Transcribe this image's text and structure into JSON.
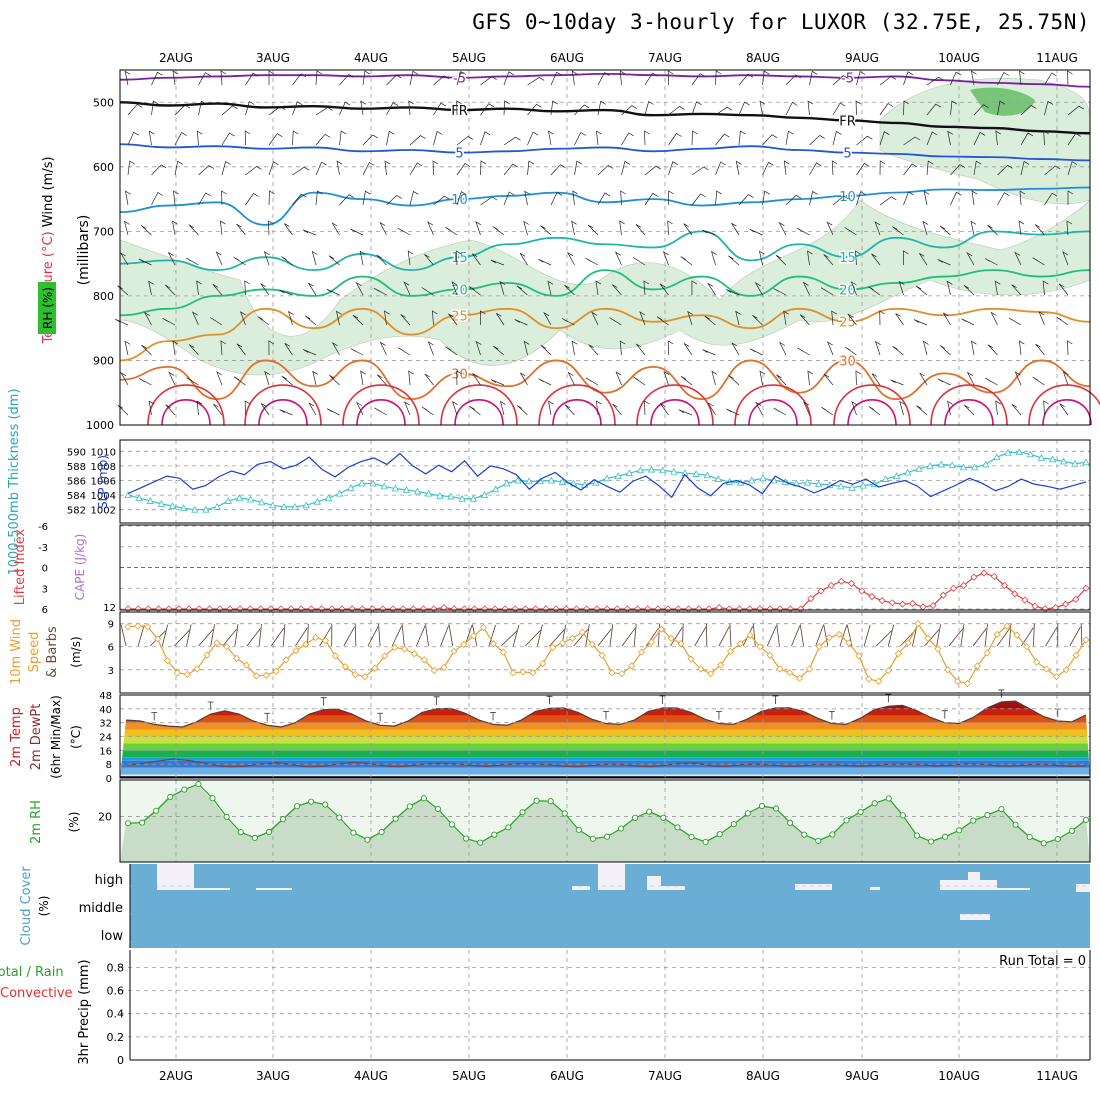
{
  "title": "GFS 0~10day 3-hourly for LUXOR (32.75E, 25.75N)",
  "colors": {
    "temp_cold": "#7a1fa2",
    "temp_blue": "#2256d6",
    "temp_lblue": "#1e90d8",
    "temp_teal": "#1fb6a8",
    "temp_green": "#1fbf7a",
    "temp_orange": "#e0902a",
    "temp_dorange": "#e0702a",
    "temp_red": "#e0303a",
    "temp_mag": "#d01070",
    "rh_fill": "#cfe8cf",
    "slp": "#1a3fd0",
    "thickness": "#3cc0c8",
    "lifted": "#e04040",
    "wind": "#e8a030",
    "rh2m": "#2aa02a",
    "cloud": "#6aaed6",
    "cloud_gap": "#f4f0f8"
  },
  "chart_data": [
    {
      "panel": "upper-air",
      "type": "contour",
      "ylabel": "(millibars)",
      "side_labels": [
        "Wind (m/s)",
        "Temperature (°C)",
        "RH (%)"
      ],
      "y_ticks": [
        500,
        600,
        700,
        800,
        900,
        1000
      ],
      "ylim": [
        1000,
        450
      ],
      "x_ticks": [
        "2AUG",
        "3AUG",
        "4AUG",
        "5AUG",
        "6AUG",
        "7AUG",
        "8AUG",
        "9AUG",
        "10AUG",
        "11AUG"
      ],
      "isotherms": [
        {
          "label": "-5",
          "levels": [
            465,
            462,
            460,
            458,
            458,
            460,
            458,
            462,
            460,
            458,
            456,
            458,
            460,
            458,
            460,
            462,
            460,
            466,
            470,
            472,
            476
          ]
        },
        {
          "label": "FR",
          "levels": [
            500,
            505,
            502,
            508,
            506,
            510,
            508,
            512,
            510,
            514,
            512,
            520,
            518,
            520,
            524,
            528,
            532,
            538,
            540,
            545,
            548
          ]
        },
        {
          "label": "5",
          "levels": [
            565,
            570,
            568,
            572,
            570,
            576,
            574,
            578,
            576,
            572,
            570,
            576,
            572,
            568,
            574,
            578,
            580,
            584,
            585,
            588,
            590
          ]
        },
        {
          "label": "10",
          "levels": [
            670,
            660,
            655,
            690,
            640,
            650,
            660,
            650,
            645,
            640,
            655,
            650,
            660,
            655,
            650,
            645,
            640,
            635,
            636,
            634,
            632
          ]
        },
        {
          "label": "15",
          "levels": [
            750,
            745,
            760,
            740,
            760,
            735,
            760,
            740,
            720,
            710,
            720,
            725,
            700,
            745,
            720,
            740,
            710,
            725,
            700,
            705,
            700
          ]
        },
        {
          "label": "20",
          "levels": [
            830,
            820,
            800,
            790,
            800,
            770,
            800,
            790,
            780,
            800,
            760,
            790,
            770,
            800,
            770,
            790,
            780,
            770,
            760,
            770,
            760
          ]
        },
        {
          "label": "25",
          "levels": [
            900,
            870,
            860,
            820,
            850,
            820,
            860,
            830,
            820,
            850,
            820,
            840,
            830,
            850,
            820,
            840,
            820,
            830,
            820,
            825,
            840
          ]
        },
        {
          "label": "30",
          "levels": [
            930,
            910,
            960,
            900,
            940,
            900,
            960,
            920,
            940,
            900,
            950,
            910,
            960,
            900,
            950,
            900,
            960,
            920,
            950,
            900,
            940
          ]
        }
      ]
    },
    {
      "panel": "slp-thickness",
      "type": "line",
      "y_labels": [
        "1000-500mb Thickness (dm)",
        "SLP (mb)"
      ],
      "left_ticks": [
        582,
        584,
        586,
        588,
        590
      ],
      "right_ticks": [
        1002,
        1004,
        1006,
        1008,
        1010
      ],
      "series": [
        {
          "name": "SLP (mb)",
          "values": [
            1004.2,
            1005.0,
            1005.8,
            1006.6,
            1006.3,
            1004.8,
            1005.3,
            1006.5,
            1007.3,
            1006.8,
            1008.2,
            1008.6,
            1007.6,
            1008.1,
            1009.2,
            1007.5,
            1006.5,
            1007.8,
            1008.6,
            1009.1,
            1008.2,
            1009.7,
            1008.0,
            1006.9,
            1008.1,
            1007.2,
            1008.7,
            1006.6,
            1008.0,
            1007.6,
            1006.8,
            1004.8,
            1006.3,
            1007.1,
            1005.7,
            1004.7,
            1006.1,
            1005.2,
            1004.4,
            1005.9,
            1006.6,
            1005.3,
            1003.7,
            1006.8,
            1005.0,
            1003.9,
            1005.6,
            1006.0,
            1005.4,
            1004.2,
            1006.6,
            1005.6,
            1005.1,
            1004.3,
            1005.0,
            1006.0,
            1005.5,
            1006.2,
            1005.1,
            1005.6,
            1006.0,
            1005.2,
            1003.8,
            1004.6,
            1005.4,
            1006.3,
            1005.6,
            1004.6,
            1005.2,
            1006.2,
            1005.5,
            1005.2,
            1004.8,
            1005.3,
            1005.8
          ]
        },
        {
          "name": "1000-500mb Thickness (dm)",
          "values": [
            584.0,
            583.6,
            583.2,
            582.8,
            582.5,
            582.2,
            582.0,
            582.0,
            582.4,
            583.2,
            583.6,
            583.4,
            583.0,
            582.6,
            582.4,
            582.4,
            582.6,
            583.1,
            583.6,
            584.2,
            585.0,
            585.6,
            585.6,
            585.2,
            584.9,
            584.7,
            584.5,
            584.2,
            583.9,
            583.8,
            583.5,
            583.5,
            584.0,
            584.8,
            585.6,
            586.0,
            585.9,
            585.9,
            586.0,
            585.8,
            585.6,
            585.4,
            585.7,
            586.3,
            586.6,
            587.0,
            587.4,
            587.5,
            587.4,
            587.2,
            587.0,
            586.9,
            586.7,
            586.2,
            585.8,
            585.7,
            586.0,
            586.3,
            586.0,
            585.8,
            585.6,
            585.7,
            585.5,
            585.4,
            585.2,
            585.0,
            585.3,
            585.5,
            586.2,
            586.6,
            587.1,
            587.6,
            588.0,
            588.2,
            588.1,
            587.8,
            587.8,
            588.2,
            589.2,
            589.8,
            589.9,
            589.6,
            589.1,
            588.9,
            588.6,
            588.3,
            588.5
          ]
        }
      ]
    },
    {
      "panel": "cape-lifted",
      "type": "line",
      "y_labels": [
        "Lifted Index",
        "CAPE (J/kg)"
      ],
      "left_ticks": [
        -6,
        -3,
        0,
        3,
        6
      ],
      "right_ticks": [
        12
      ],
      "series": [
        {
          "name": "Lifted Index",
          "values": [
            6,
            6,
            6,
            6,
            6,
            6,
            6,
            6,
            6,
            6,
            6,
            6,
            6,
            6,
            6,
            6,
            6,
            6,
            6,
            6,
            6,
            6,
            6,
            6,
            6,
            6,
            6,
            6,
            6,
            6,
            6,
            5.8,
            6,
            6,
            6,
            6,
            6,
            6,
            6,
            6,
            6,
            6,
            6,
            6,
            6,
            6,
            6,
            6,
            6,
            6,
            6,
            6,
            6,
            6,
            6,
            6,
            6,
            6,
            5.8,
            6,
            6,
            6,
            6,
            6,
            6,
            6,
            6,
            4.5,
            3.4,
            2.6,
            2.0,
            2.3,
            3.4,
            4.2,
            4.8,
            5.1,
            5.3,
            5.2,
            5.7,
            5.5,
            4.0,
            3.0,
            2.6,
            1.4,
            0.8,
            1.3,
            2.6,
            3.8,
            4.7,
            5.6,
            6.0,
            5.8,
            5.3,
            4.6,
            3.0
          ]
        }
      ]
    },
    {
      "panel": "10m-wind",
      "type": "line",
      "y_labels": [
        "10m Wind Speed & Barbs",
        "(m/s)"
      ],
      "left_ticks": [
        3,
        6,
        9
      ],
      "series": [
        {
          "name": "10m Wind Speed",
          "values": [
            8.6,
            8.7,
            8.6,
            7.0,
            4.2,
            2.6,
            2.4,
            3.1,
            4.9,
            6.5,
            6.0,
            4.5,
            3.6,
            2.2,
            2.3,
            2.8,
            4.3,
            5.5,
            6.3,
            7.2,
            6.8,
            4.8,
            3.4,
            2.4,
            2.1,
            3.2,
            4.8,
            5.9,
            5.7,
            5.1,
            4.3,
            2.9,
            3.3,
            5.4,
            6.3,
            7.4,
            8.5,
            6.4,
            5.3,
            2.6,
            2.7,
            2.6,
            3.8,
            5.9,
            6.5,
            7.1,
            7.9,
            6.3,
            4.9,
            2.6,
            2.5,
            3.5,
            5.3,
            6.6,
            8.3,
            7.1,
            6.4,
            4.4,
            3.1,
            2.5,
            3.6,
            5.4,
            6.4,
            7.5,
            6.0,
            4.9,
            3.1,
            2.6,
            1.9,
            3.1,
            6.0,
            7.2,
            7.6,
            6.5,
            4.8,
            1.8,
            1.5,
            2.9,
            5.1,
            6.5,
            9.0,
            7.1,
            5.7,
            3.0,
            1.5,
            1.2,
            3.5,
            5.2,
            7.6,
            8.7,
            7.5,
            6.0,
            4.0,
            3.1,
            2.1,
            3.0,
            4.9,
            6.9
          ]
        }
      ]
    },
    {
      "panel": "2m-temp",
      "type": "area",
      "y_labels": [
        "2m Temp",
        "2m DewPt",
        "(6hr Min/Max)",
        "(°C)"
      ],
      "left_ticks": [
        0,
        8,
        16,
        24,
        32,
        40,
        48
      ],
      "series": [
        {
          "name": "2m Temp",
          "values": [
            33.5,
            33.0,
            31.0,
            30.0,
            29.5,
            32.5,
            37.0,
            38.8,
            37.0,
            33.0,
            30.5,
            29.5,
            32.0,
            37.0,
            39.5,
            39.8,
            37.0,
            33.0,
            30.5,
            30.0,
            33.0,
            38.0,
            40.0,
            40.3,
            37.5,
            33.5,
            31.0,
            30.5,
            33.5,
            38.5,
            40.3,
            40.5,
            38.0,
            34.0,
            31.5,
            31.0,
            33.5,
            38.5,
            40.5,
            40.5,
            38.0,
            34.0,
            31.5,
            31.0,
            34.0,
            38.5,
            40.5,
            40.6,
            38.5,
            34.5,
            31.5,
            31.0,
            34.5,
            39.5,
            41.5,
            42.0,
            39.0,
            35.0,
            32.0,
            31.5,
            35.0,
            40.5,
            44.0,
            44.5,
            40.0,
            35.5,
            33.0,
            32.5,
            36.5
          ]
        },
        {
          "name": "2m DewPt",
          "values": [
            7.5,
            8.5,
            9.8,
            11.0,
            10.2,
            8.8,
            7.0,
            6.5,
            7.0,
            8.2,
            8.8,
            7.6,
            6.4,
            6.8,
            8.0,
            9.0,
            8.5,
            7.2,
            6.5,
            7.3,
            8.2,
            8.6,
            8.1,
            7.2,
            6.8,
            7.5,
            8.2,
            8.3,
            7.7,
            6.9,
            6.5,
            7.2,
            8.0,
            7.8,
            6.9,
            6.6,
            7.4,
            8.6,
            8.6,
            7.0,
            6.7,
            7.6,
            8.1,
            7.4,
            6.8,
            7.0,
            7.7,
            7.8,
            7.2,
            6.9,
            7.3,
            8.0,
            8.1,
            7.6,
            7.0,
            7.4,
            8.2,
            8.0,
            7.1,
            6.9,
            7.5,
            8.0,
            7.3,
            6.8,
            7.0
          ]
        }
      ]
    },
    {
      "panel": "2m-rh",
      "type": "area",
      "y_labels": [
        "2m RH",
        "(%)"
      ],
      "left_ticks": [
        20
      ],
      "series": [
        {
          "name": "2m RH",
          "values": [
            17.0,
            17.3,
            22.5,
            28.6,
            31.8,
            34.2,
            28.0,
            19.8,
            13.1,
            10.6,
            13.2,
            18.8,
            24.5,
            26.5,
            25.2,
            19.5,
            12.9,
            9.8,
            13.2,
            19.0,
            24.4,
            28.0,
            23.3,
            16.5,
            10.3,
            8.5,
            12.0,
            15.2,
            21.8,
            26.9,
            26.7,
            21.3,
            14.1,
            10.2,
            11.1,
            14.7,
            19.4,
            22.1,
            19.4,
            15.2,
            11.0,
            8.8,
            12.2,
            16.6,
            21.4,
            24.6,
            23.5,
            17.2,
            12.0,
            9.3,
            12.1,
            18.3,
            22.0,
            25.8,
            27.9,
            20.5,
            11.6,
            9.0,
            11.1,
            13.9,
            18.2,
            20.6,
            23.2,
            16.4,
            11.0,
            8.2,
            10.1,
            13.7,
            18.5
          ]
        }
      ]
    },
    {
      "panel": "cloud-cover",
      "type": "bar",
      "y_labels": [
        "Cloud Cover",
        "(%)"
      ],
      "levels": [
        "high",
        "middle",
        "low"
      ],
      "series": [
        {
          "name": "high",
          "values": [
            0,
            18,
            92,
            92,
            92,
            92,
            2,
            0,
            0,
            0,
            0,
            0,
            0,
            0,
            2,
            2,
            2,
            2,
            0,
            0,
            0,
            0,
            0,
            0,
            0,
            0,
            0,
            0,
            0,
            0,
            0,
            0,
            0,
            0,
            0,
            0,
            0,
            0,
            0,
            0,
            0,
            0,
            0,
            0,
            0,
            0,
            0,
            0,
            0,
            0,
            0,
            0,
            0,
            0,
            0,
            0,
            0,
            0,
            0,
            0,
            0,
            0,
            0,
            0,
            0,
            0,
            0,
            0,
            0,
            0,
            0,
            0,
            0,
            0,
            0,
            0,
            0,
            0,
            0,
            0,
            0,
            0,
            0,
            0,
            0,
            0,
            0,
            0,
            0,
            0,
            0,
            0,
            0,
            0,
            0,
            0,
            0,
            0,
            0,
            0,
            0,
            0,
            0,
            0,
            0,
            0,
            0,
            0,
            0,
            0,
            0,
            0,
            0,
            0,
            0,
            0,
            0,
            0,
            0,
            0,
            0,
            0,
            0,
            0,
            0,
            0,
            0,
            0,
            0,
            0,
            0,
            0,
            0,
            0,
            0,
            0,
            0,
            0,
            0,
            0,
            0,
            0,
            0,
            0,
            0,
            0,
            0,
            0,
            0,
            0,
            0,
            0,
            0
          ]
        }
      ]
    },
    {
      "panel": "precip",
      "type": "bar",
      "y_labels": [
        "3hr Precip (mm)"
      ],
      "left_labels": [
        "Total / Rain",
        "Convective"
      ],
      "left_ticks": [
        0,
        0.2,
        0.4,
        0.6,
        0.8
      ],
      "annotation": "Run Total = 0",
      "x_ticks": [
        "2AUG",
        "3AUG",
        "4AUG",
        "5AUG",
        "6AUG",
        "7AUG",
        "8AUG",
        "9AUG",
        "10AUG",
        "11AUG"
      ],
      "series": [
        {
          "name": "3hr Precip",
          "values": [
            0,
            0,
            0,
            0,
            0,
            0,
            0,
            0,
            0,
            0
          ]
        }
      ]
    }
  ]
}
